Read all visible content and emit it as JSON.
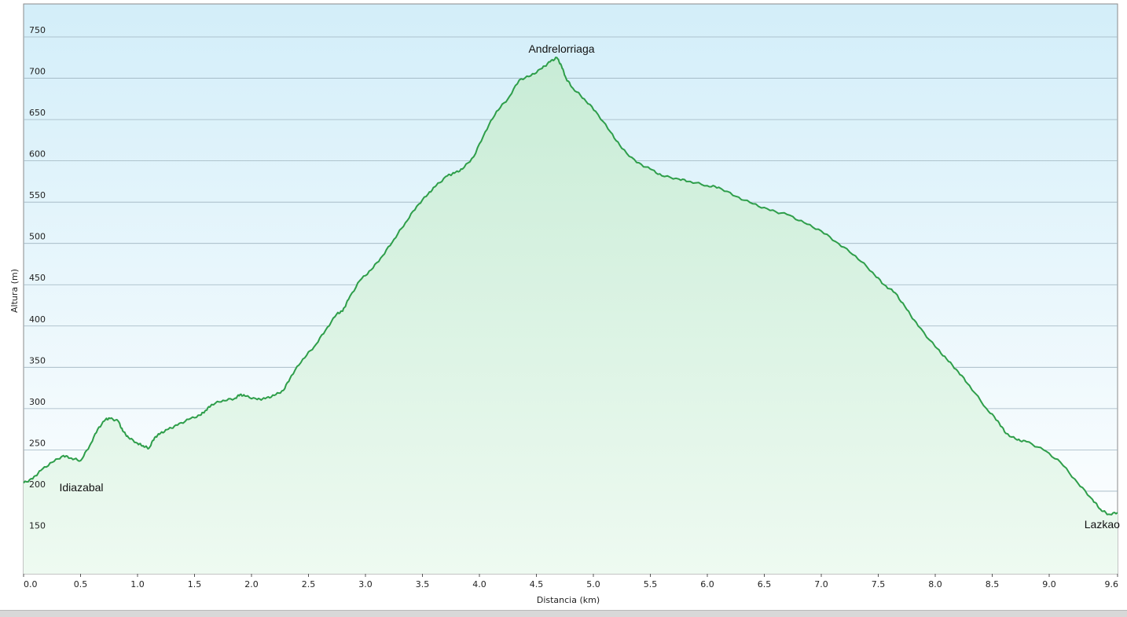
{
  "chart_data": {
    "type": "area",
    "xlabel": "Distancia  (km)",
    "ylabel": "Altura (m)",
    "xlim": [
      0,
      9.6
    ],
    "ylim": [
      100,
      790
    ],
    "xticks": [
      "0.0",
      "0.5",
      "1.0",
      "1.5",
      "2.0",
      "2.5",
      "3.0",
      "3.5",
      "4.0",
      "4.5",
      "5.0",
      "5.5",
      "6.0",
      "6.5",
      "7.0",
      "7.5",
      "8.0",
      "8.5",
      "9.0",
      "9.6"
    ],
    "yticks": [
      "150",
      "200",
      "250",
      "300",
      "350",
      "400",
      "450",
      "500",
      "550",
      "600",
      "650",
      "700",
      "750"
    ],
    "grid": true,
    "legend": "none",
    "colors": {
      "line": "#2e9e4a",
      "fill_top": "#c8ecd6",
      "fill_bottom": "#eefaf1",
      "bg_top": "#d3eef9",
      "bg_bottom": "#ffffff",
      "grid": "#9fb4c0"
    },
    "annotations": [
      {
        "text": "Andrelorriaga",
        "x": 4.5,
        "y": 731
      },
      {
        "text": "Idiazabal",
        "x": 0.5,
        "y": 200
      },
      {
        "text": "Lazkao",
        "x": 9.35,
        "y": 155
      }
    ],
    "series": [
      {
        "x": [
          0.0,
          0.08,
          0.15,
          0.25,
          0.35,
          0.42,
          0.5,
          0.58,
          0.65,
          0.72,
          0.76,
          0.83,
          0.87,
          0.92,
          1.0,
          1.05,
          1.1,
          1.15,
          1.2,
          1.27,
          1.35,
          1.45,
          1.55,
          1.6,
          1.65,
          1.75,
          1.85,
          1.9,
          1.95,
          2.05,
          2.12,
          2.2,
          2.28,
          2.35,
          2.45,
          2.55,
          2.65,
          2.75,
          2.8,
          2.85,
          2.95,
          3.05,
          3.15,
          3.25,
          3.35,
          3.45,
          3.55,
          3.62,
          3.72,
          3.78,
          3.85,
          3.95,
          4.05,
          4.15,
          4.25,
          4.35,
          4.45,
          4.55,
          4.62,
          4.68,
          4.72,
          4.76,
          4.82,
          4.92,
          5.02,
          5.15,
          5.25,
          5.38,
          5.5,
          5.6,
          5.75,
          5.85,
          6.0,
          6.1,
          6.25,
          6.4,
          6.55,
          6.7,
          6.85,
          7.0,
          7.15,
          7.3,
          7.45,
          7.55,
          7.65,
          7.75,
          7.85,
          8.0,
          8.1,
          8.2,
          8.3,
          8.45,
          8.55,
          8.62,
          8.72,
          8.8,
          8.95,
          9.1,
          9.25,
          9.38,
          9.45,
          9.52,
          9.6
        ],
        "y": [
          210,
          215,
          225,
          235,
          243,
          240,
          237,
          255,
          275,
          287,
          288,
          285,
          273,
          265,
          258,
          255,
          252,
          265,
          270,
          275,
          280,
          287,
          292,
          298,
          305,
          310,
          312,
          317,
          315,
          311,
          312,
          316,
          322,
          340,
          360,
          375,
          395,
          415,
          418,
          432,
          455,
          468,
          485,
          505,
          525,
          545,
          560,
          570,
          582,
          585,
          590,
          605,
          635,
          660,
          675,
          698,
          703,
          712,
          720,
          725,
          715,
          700,
          688,
          675,
          660,
          635,
          615,
          598,
          590,
          582,
          578,
          575,
          570,
          568,
          557,
          548,
          540,
          535,
          525,
          515,
          500,
          485,
          465,
          450,
          440,
          420,
          400,
          375,
          360,
          345,
          328,
          300,
          285,
          270,
          262,
          260,
          250,
          235,
          210,
          190,
          178,
          172,
          174
        ]
      }
    ]
  }
}
